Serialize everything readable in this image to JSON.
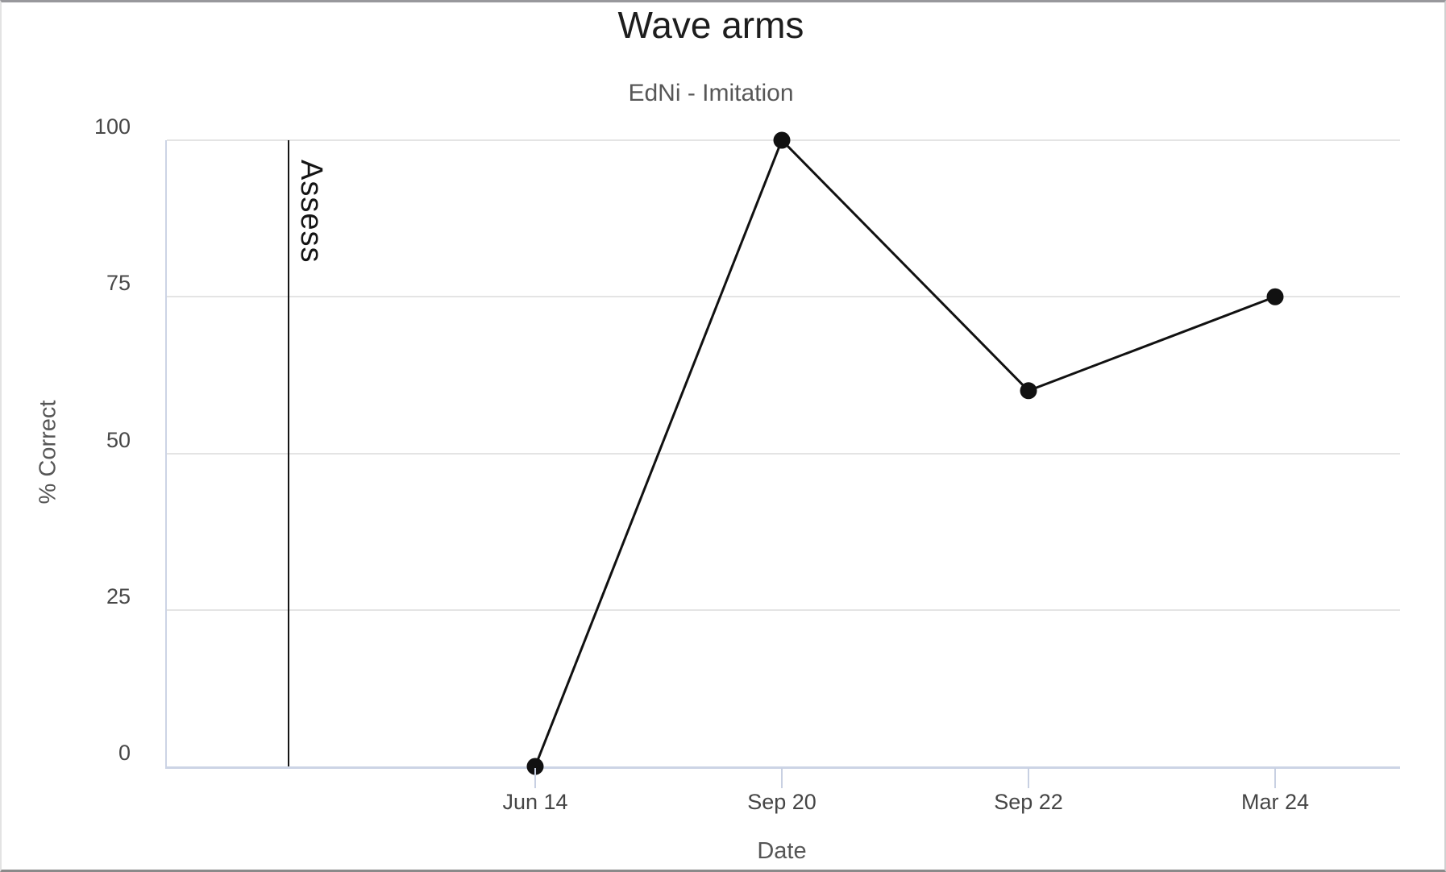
{
  "chart_data": {
    "type": "line",
    "title": "Wave arms",
    "subtitle": "EdNi - Imitation",
    "xlabel": "Date",
    "ylabel": "% Correct",
    "categories": [
      "Jun 14",
      "Sep 20",
      "Sep 22",
      "Mar 24"
    ],
    "values": [
      0,
      100,
      60,
      75
    ],
    "ylim": [
      0,
      100
    ],
    "yticks": [
      0,
      25,
      50,
      75,
      100
    ],
    "grid": true,
    "legend_position": "none",
    "x_layout": {
      "slots": 5,
      "point_slots": [
        1,
        2,
        3,
        4
      ],
      "phase_line_slot": 0
    },
    "annotations": [
      {
        "type": "vline",
        "label": "Assess",
        "slot": 0
      }
    ],
    "colors": {
      "line": "#111111",
      "point": "#111111",
      "grid": "#e4e4e4",
      "axis": "#ccd4e5",
      "phase_line": "#151515",
      "title_text": "#1d1d1d",
      "muted_text": "#565656",
      "tick_text": "#484848"
    }
  }
}
